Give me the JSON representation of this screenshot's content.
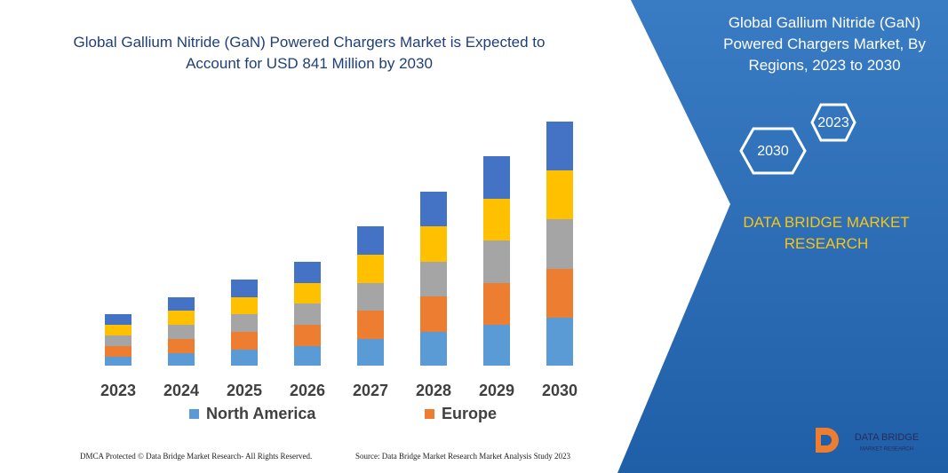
{
  "chart_data": {
    "type": "bar",
    "stacked": true,
    "title": "Global Gallium Nitride (GaN) Powered Chargers Market is Expected to Account for USD 841 Million by 2030",
    "categories": [
      "2023",
      "2024",
      "2025",
      "2026",
      "2027",
      "2028",
      "2029",
      "2030"
    ],
    "series": [
      {
        "name": "North America",
        "color": "#5b9bd5",
        "values": [
          10,
          14,
          18,
          22,
          30,
          38,
          46,
          54
        ]
      },
      {
        "name": "Europe",
        "color": "#ed7d31",
        "values": [
          12,
          16,
          20,
          24,
          32,
          40,
          47,
          55
        ]
      },
      {
        "color": "#a5a5a5",
        "values": [
          12,
          16,
          20,
          24,
          31,
          39,
          48,
          56
        ]
      },
      {
        "color": "#ffc000",
        "values": [
          12,
          16,
          19,
          23,
          32,
          40,
          47,
          55
        ]
      },
      {
        "color": "#4472c4",
        "values": [
          12,
          15,
          20,
          24,
          32,
          39,
          48,
          55
        ]
      }
    ]
  },
  "panel": {
    "title": "Global Gallium Nitride (GaN) Powered Chargers Market, By Regions, 2023 to 2030",
    "start": "2023",
    "end": "2030",
    "brand": "DATA BRIDGE MARKET RESEARCH"
  },
  "footer": {
    "left": "DMCA Protected © Data Bridge Market Research- All Rights Reserved.",
    "right": "Source: Data Bridge Market Research Market Analysis Study 2023"
  },
  "logo": {
    "name": "DATA BRIDGE",
    "tagline": "MARKET RESEARCH"
  }
}
